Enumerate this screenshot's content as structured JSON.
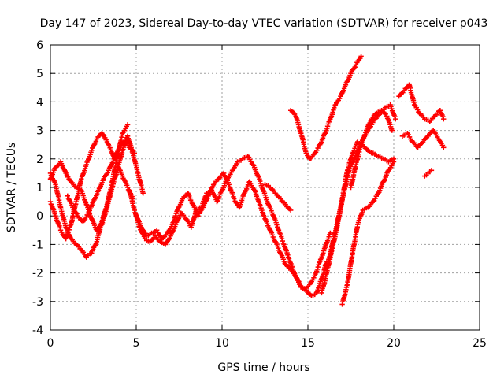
{
  "chart_data": {
    "type": "scatter",
    "title": "Day 147 of 2023, Sidereal Day-to-day VTEC variation (SDTVAR) for receiver p043",
    "xlabel": "GPS time / hours",
    "ylabel": "SDTVAR / TECUs",
    "xlim": [
      0,
      25
    ],
    "ylim": [
      -4,
      6
    ],
    "xticks": [
      0,
      5,
      10,
      15,
      20,
      25
    ],
    "yticks": [
      -4,
      -3,
      -2,
      -1,
      0,
      1,
      2,
      3,
      4,
      5,
      6
    ],
    "grid": true,
    "marker": "plus",
    "color": "#ff0000",
    "series": [
      {
        "x": [
          0.0,
          0.3,
          0.6,
          0.9,
          1.2,
          1.5,
          1.8,
          2.1,
          2.4,
          2.7,
          3.0,
          3.3,
          3.6,
          3.9,
          4.2,
          4.5
        ],
        "y": [
          1.5,
          1.1,
          0.3,
          -0.4,
          -0.8,
          -1.0,
          -1.2,
          -1.45,
          -1.3,
          -0.9,
          -0.2,
          0.4,
          1.2,
          2.1,
          2.9,
          3.2
        ]
      },
      {
        "x": [
          0.0,
          0.3,
          0.6,
          0.9,
          1.2,
          1.5,
          1.8,
          2.1,
          2.4,
          2.7,
          3.0,
          3.3,
          3.6,
          3.9,
          4.2,
          4.5,
          4.8,
          5.1,
          5.4
        ],
        "y": [
          1.3,
          1.7,
          1.9,
          1.5,
          1.2,
          1.0,
          0.9,
          0.4,
          -0.1,
          -0.5,
          -0.3,
          0.3,
          1.0,
          1.6,
          2.3,
          2.8,
          2.2,
          1.5,
          0.8
        ]
      },
      {
        "x": [
          0.0,
          0.3,
          0.6,
          0.9,
          1.2,
          1.5,
          1.8,
          2.1,
          2.4,
          2.7,
          3.0,
          3.3,
          3.6,
          3.9,
          4.2,
          4.5,
          4.8
        ],
        "y": [
          0.5,
          0.0,
          -0.5,
          -0.8,
          -0.3,
          0.5,
          1.3,
          1.8,
          2.3,
          2.7,
          2.9,
          2.6,
          2.2,
          1.8,
          1.4,
          1.0,
          0.6
        ]
      },
      {
        "x": [
          1.0,
          1.3,
          1.6,
          1.9,
          2.2,
          2.5,
          2.8,
          3.1,
          3.4,
          3.7,
          4.0,
          4.3,
          4.6,
          4.9
        ],
        "y": [
          0.7,
          0.3,
          0.0,
          -0.2,
          0.1,
          0.5,
          0.9,
          1.3,
          1.6,
          2.0,
          2.4,
          2.6,
          2.4,
          2.2
        ]
      },
      {
        "x": [
          4.6,
          4.9,
          5.2,
          5.5,
          5.8,
          6.1,
          6.4,
          6.7,
          7.0,
          7.3,
          7.6,
          7.9,
          8.2,
          8.5,
          8.8,
          9.1,
          9.4,
          9.7,
          10.0,
          10.3,
          10.6,
          10.9,
          11.2,
          11.5,
          11.8,
          12.1,
          12.4,
          12.7,
          13.0,
          13.3,
          13.6,
          13.9,
          14.2,
          14.5,
          14.8,
          15.1,
          15.4,
          15.7,
          16.0,
          16.3
        ],
        "y": [
          0.9,
          0.2,
          -0.4,
          -0.8,
          -0.9,
          -0.7,
          -0.9,
          -1.0,
          -0.7,
          -0.3,
          0.1,
          -0.1,
          -0.4,
          0.2,
          0.3,
          0.8,
          0.9,
          0.5,
          0.9,
          1.3,
          1.6,
          1.9,
          2.0,
          2.1,
          1.8,
          1.4,
          0.9,
          0.4,
          0.0,
          -0.5,
          -1.0,
          -1.5,
          -2.0,
          -2.4,
          -2.55,
          -2.4,
          -2.1,
          -1.6,
          -1.1,
          -0.6
        ]
      },
      {
        "x": [
          5.0,
          5.3,
          5.6,
          5.9,
          6.2,
          6.5,
          6.8,
          7.1,
          7.4,
          7.7,
          8.0,
          8.3,
          8.6,
          8.9,
          9.2,
          9.5,
          9.8,
          10.1,
          10.4,
          10.7,
          11.0,
          11.3,
          11.6,
          11.9,
          12.2,
          12.5,
          12.8,
          13.1,
          13.4,
          13.7,
          14.0,
          14.3,
          14.6,
          14.9,
          15.2,
          15.5,
          15.8,
          16.1
        ],
        "y": [
          0.0,
          -0.4,
          -0.7,
          -0.6,
          -0.5,
          -0.8,
          -0.6,
          -0.3,
          0.2,
          0.6,
          0.8,
          0.4,
          0.0,
          0.3,
          0.7,
          1.1,
          1.3,
          1.5,
          1.1,
          0.6,
          0.3,
          0.8,
          1.2,
          0.9,
          0.4,
          -0.1,
          -0.5,
          -0.9,
          -1.3,
          -1.7,
          -1.9,
          -2.1,
          -2.5,
          -2.6,
          -2.8,
          -2.7,
          -2.2,
          -1.6
        ]
      },
      {
        "x": [
          12.5,
          12.8,
          13.1,
          13.4,
          13.7,
          14.0
        ],
        "y": [
          1.1,
          1.0,
          0.8,
          0.6,
          0.4,
          0.2
        ]
      },
      {
        "x": [
          14.0,
          14.3,
          14.6,
          14.9,
          15.1,
          15.4,
          15.7,
          16.0,
          16.3,
          16.6,
          16.9,
          17.2,
          17.5,
          17.8,
          18.1
        ],
        "y": [
          3.7,
          3.5,
          2.9,
          2.2,
          2.0,
          2.2,
          2.5,
          2.9,
          3.4,
          3.9,
          4.2,
          4.6,
          5.0,
          5.3,
          5.6
        ]
      },
      {
        "x": [
          15.8,
          16.1,
          16.4,
          16.7,
          17.0,
          17.3,
          17.6,
          17.9,
          18.2,
          18.5,
          18.8,
          19.1,
          19.4,
          19.7,
          20.0
        ],
        "y": [
          -2.7,
          -2.0,
          -1.2,
          -0.4,
          0.6,
          1.6,
          2.2,
          2.6,
          2.5,
          2.3,
          2.2,
          2.1,
          2.0,
          1.9,
          2.0
        ]
      },
      {
        "x": [
          17.0,
          17.3,
          17.6,
          17.9,
          18.2,
          18.5,
          18.8,
          19.1,
          19.4,
          19.7,
          20.0
        ],
        "y": [
          -3.1,
          -2.4,
          -1.3,
          -0.3,
          0.2,
          0.3,
          0.5,
          0.8,
          1.2,
          1.6,
          1.9
        ]
      },
      {
        "x": [
          16.2,
          16.5,
          16.8,
          17.1,
          17.4,
          17.7,
          18.0,
          18.3,
          18.6,
          18.9,
          19.2,
          19.5,
          19.8,
          20.1
        ],
        "y": [
          -1.6,
          -0.8,
          0.0,
          0.8,
          1.6,
          2.0,
          2.4,
          2.8,
          3.1,
          3.4,
          3.6,
          3.8,
          3.9,
          3.4
        ]
      },
      {
        "x": [
          17.5,
          17.8,
          18.1,
          18.4,
          18.7,
          19.0,
          19.3,
          19.6,
          19.9
        ],
        "y": [
          1.0,
          1.8,
          2.5,
          3.0,
          3.4,
          3.6,
          3.7,
          3.5,
          3.0
        ]
      },
      {
        "x": [
          20.3,
          20.6,
          20.9,
          21.2,
          21.5,
          21.8,
          22.1,
          22.4,
          22.7,
          22.9
        ],
        "y": [
          4.2,
          4.4,
          4.6,
          3.9,
          3.6,
          3.4,
          3.3,
          3.5,
          3.7,
          3.4
        ]
      },
      {
        "x": [
          20.5,
          20.8,
          21.1,
          21.4,
          21.7,
          22.0,
          22.3,
          22.6,
          22.9
        ],
        "y": [
          2.8,
          2.9,
          2.6,
          2.4,
          2.6,
          2.8,
          3.0,
          2.7,
          2.4
        ]
      },
      {
        "x": [
          21.8,
          22.0,
          22.2
        ],
        "y": [
          1.4,
          1.5,
          1.6
        ]
      }
    ]
  }
}
